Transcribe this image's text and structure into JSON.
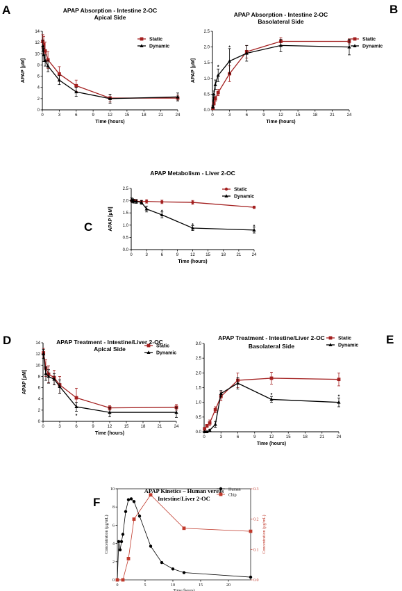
{
  "colors": {
    "static": "#a31f1f",
    "dynamic": "#000000",
    "human": "#000000",
    "chip": "#c0392b"
  },
  "chart_data": [
    {
      "id": "A",
      "panel_label": "A",
      "type": "line",
      "title_lines": [
        "APAP Absorption - Intestine 2-OC",
        "Apical Side"
      ],
      "xlabel": "Time (hours)",
      "ylabel": "APAP [µM]",
      "xlim": [
        0,
        24
      ],
      "ylim": [
        0,
        14
      ],
      "xticks": [
        0,
        3,
        6,
        9,
        12,
        15,
        18,
        21,
        24
      ],
      "yticks": [
        0,
        2,
        4,
        6,
        8,
        10,
        12,
        14
      ],
      "legend": "top-right",
      "series": [
        {
          "name": "Static",
          "color": "#a31f1f",
          "marker": "square",
          "x": [
            0.083,
            0.25,
            0.5,
            1,
            3,
            6,
            12,
            24
          ],
          "y": [
            12.2,
            11.6,
            10.5,
            8.9,
            6.4,
            4.3,
            2.1,
            2.1
          ],
          "err": [
            1.2,
            1.5,
            1.6,
            1.5,
            1.3,
            1.0,
            0.7,
            0.5
          ]
        },
        {
          "name": "Dynamic",
          "color": "#000000",
          "marker": "triangle",
          "x": [
            0.083,
            0.25,
            0.5,
            1,
            3,
            6,
            12,
            24
          ],
          "y": [
            11.4,
            9.8,
            8.8,
            7.8,
            5.3,
            3.2,
            2.0,
            2.3
          ],
          "err": [
            1.0,
            1.2,
            1.0,
            1.0,
            0.8,
            0.8,
            0.8,
            0.7
          ]
        }
      ],
      "annotations": []
    },
    {
      "id": "B",
      "panel_label": "B",
      "type": "line",
      "title_lines": [
        "APAP Absorption - Intestine 2-OC",
        "Basolateral Side"
      ],
      "xlabel": "Time (hours)",
      "ylabel": "APAP [µM]",
      "xlim": [
        0,
        24
      ],
      "ylim": [
        0,
        2.5
      ],
      "xticks": [
        0,
        3,
        6,
        9,
        12,
        15,
        18,
        21,
        24
      ],
      "yticks": [
        0.0,
        0.5,
        1.0,
        1.5,
        2.0,
        2.5
      ],
      "legend": "top-right",
      "series": [
        {
          "name": "Static",
          "color": "#a31f1f",
          "marker": "square",
          "x": [
            0.083,
            0.25,
            0.5,
            1,
            3,
            6,
            12,
            24
          ],
          "y": [
            0.05,
            0.2,
            0.35,
            0.55,
            1.15,
            1.85,
            2.18,
            2.18
          ],
          "err": [
            0.03,
            0.05,
            0.08,
            0.1,
            0.25,
            0.2,
            0.12,
            0.08
          ]
        },
        {
          "name": "Dynamic",
          "color": "#000000",
          "marker": "triangle",
          "x": [
            0.083,
            0.25,
            0.5,
            1,
            3,
            6,
            12,
            24
          ],
          "y": [
            0.1,
            0.5,
            0.8,
            1.1,
            1.55,
            1.8,
            2.05,
            2.0
          ],
          "err": [
            0.05,
            0.1,
            0.15,
            0.2,
            0.4,
            0.25,
            0.2,
            0.25
          ]
        }
      ],
      "annotations": [
        {
          "text": "*",
          "x": 1,
          "y": 1.38
        },
        {
          "text": "*",
          "x": 3,
          "y": 2.0
        }
      ]
    },
    {
      "id": "C",
      "panel_label": "C",
      "type": "line",
      "title_lines": [
        "APAP Metabolism - Liver 2-OC"
      ],
      "xlabel": "Time (hours)",
      "ylabel": "APAP [µM]",
      "xlim": [
        0,
        24
      ],
      "ylim": [
        0,
        2.5
      ],
      "xticks": [
        0,
        3,
        6,
        9,
        12,
        15,
        18,
        21,
        24
      ],
      "yticks": [
        0.0,
        0.5,
        1.0,
        1.5,
        2.0,
        2.5
      ],
      "legend": "top-right",
      "series": [
        {
          "name": "Static",
          "color": "#a31f1f",
          "marker": "circle",
          "x": [
            0.083,
            0.25,
            0.5,
            1,
            2,
            3,
            6,
            12,
            24
          ],
          "y": [
            2.0,
            2.0,
            2.0,
            1.98,
            1.96,
            1.97,
            1.95,
            1.93,
            1.73
          ],
          "err": [
            0.05,
            0.05,
            0.05,
            0.05,
            0.05,
            0.07,
            0.07,
            0.08,
            0.05
          ]
        },
        {
          "name": "Dynamic",
          "color": "#000000",
          "marker": "triangle",
          "x": [
            0.083,
            0.25,
            0.5,
            1,
            2,
            3,
            6,
            12,
            24
          ],
          "y": [
            2.03,
            2.0,
            1.98,
            1.97,
            1.93,
            1.66,
            1.42,
            0.88,
            0.8
          ],
          "err": [
            0.08,
            0.08,
            0.08,
            0.08,
            0.08,
            0.12,
            0.12,
            0.1,
            0.12
          ]
        }
      ],
      "annotations": [
        {
          "text": "*",
          "x": 6,
          "y": 1.58
        },
        {
          "text": "*",
          "x": 12,
          "y": 1.02
        },
        {
          "text": "*",
          "x": 24,
          "y": 0.97
        }
      ]
    },
    {
      "id": "D",
      "panel_label": "D",
      "type": "line",
      "title_lines": [
        "APAP Treatment - Intestine/Liver 2-OC",
        "Apical Side"
      ],
      "xlabel": "Time (hours)",
      "ylabel": "APAP [µM]",
      "xlim": [
        0,
        24
      ],
      "ylim": [
        0,
        14
      ],
      "xticks": [
        0,
        3,
        6,
        9,
        12,
        15,
        18,
        21,
        24
      ],
      "yticks": [
        0,
        2,
        4,
        6,
        8,
        10,
        12,
        14
      ],
      "legend": "top-right",
      "series": [
        {
          "name": "Static",
          "color": "#a31f1f",
          "marker": "square",
          "x": [
            0.083,
            0.5,
            1,
            2,
            3,
            6,
            12,
            24
          ],
          "y": [
            12.2,
            9.5,
            8.4,
            7.8,
            6.5,
            4.2,
            2.4,
            2.5
          ],
          "err": [
            0.8,
            1.5,
            1.5,
            1.3,
            1.5,
            1.7,
            0.4,
            0.5
          ]
        },
        {
          "name": "Dynamic",
          "color": "#000000",
          "marker": "triangle",
          "x": [
            0.083,
            0.5,
            1,
            2,
            3,
            6,
            12,
            24
          ],
          "y": [
            12.0,
            8.5,
            8.0,
            7.5,
            6.2,
            2.6,
            1.6,
            1.6
          ],
          "err": [
            0.8,
            1.2,
            1.2,
            1.0,
            1.2,
            0.8,
            0.8,
            0.9
          ]
        }
      ],
      "annotations": [
        {
          "text": "*",
          "x": 6,
          "y": 1.1
        }
      ]
    },
    {
      "id": "E",
      "panel_label": "E",
      "type": "line",
      "title_lines": [
        "APAP Treatment - Intestine/Liver 2-OC",
        "Basolateral Side"
      ],
      "xlabel": "Time (hours)",
      "ylabel": "",
      "xlim": [
        0,
        24
      ],
      "ylim": [
        0,
        3.0
      ],
      "xticks": [
        0,
        3,
        6,
        9,
        12,
        15,
        18,
        21,
        24
      ],
      "yticks": [
        0.0,
        0.5,
        1.0,
        1.5,
        2.0,
        2.5,
        3.0
      ],
      "legend": "top-right",
      "series": [
        {
          "name": "Static",
          "color": "#a31f1f",
          "marker": "square",
          "x": [
            0.083,
            0.5,
            1,
            2,
            3,
            6,
            12,
            24
          ],
          "y": [
            0.1,
            0.2,
            0.3,
            0.75,
            1.2,
            1.75,
            1.82,
            1.78
          ],
          "err": [
            0.05,
            0.05,
            0.1,
            0.1,
            0.15,
            0.25,
            0.2,
            0.22
          ]
        },
        {
          "name": "Dynamic",
          "color": "#000000",
          "marker": "triangle",
          "x": [
            0.083,
            0.5,
            1,
            2,
            3,
            6,
            12,
            24
          ],
          "y": [
            0.0,
            0.0,
            0.05,
            0.25,
            1.3,
            1.65,
            1.1,
            1.0
          ],
          "err": [
            0.02,
            0.02,
            0.03,
            0.1,
            0.1,
            0.2,
            0.1,
            0.15
          ]
        }
      ],
      "annotations": [
        {
          "text": "*",
          "x": 12,
          "y": 1.28
        },
        {
          "text": "*",
          "x": 24,
          "y": 1.22
        }
      ]
    },
    {
      "id": "F",
      "panel_label": "F",
      "type": "line",
      "title_lines": [
        "APAP Kinetics – Human versus",
        "Intestine/Liver 2-OC"
      ],
      "xlabel": "Time (hours)",
      "ylabel": "Concentration (µg/mL)",
      "y2label": "Concentration (µg/mL)",
      "xlim": [
        0,
        24
      ],
      "ylim": [
        0,
        10
      ],
      "y2lim": [
        0,
        0.3
      ],
      "xticks": [
        0,
        5,
        10,
        15,
        20
      ],
      "yticks": [
        0,
        2,
        4,
        6,
        8,
        10
      ],
      "y2ticks": [
        0.0,
        0.1,
        0.2,
        0.3
      ],
      "legend": "top-right",
      "series": [
        {
          "name": "Human",
          "color": "#000000",
          "marker": "circle",
          "axis": "left",
          "x": [
            0,
            0.25,
            0.5,
            0.75,
            1,
            1.5,
            2,
            2.5,
            3,
            4,
            6,
            8,
            10,
            12,
            24
          ],
          "y": [
            0.0,
            4.2,
            3.3,
            4.2,
            5.0,
            7.5,
            8.8,
            8.9,
            8.6,
            7.0,
            3.7,
            1.9,
            1.2,
            0.8,
            0.3
          ]
        },
        {
          "name": "Chip",
          "color": "#c0392b",
          "marker": "square",
          "axis": "right",
          "x": [
            0,
            1,
            2,
            3,
            6,
            12,
            24
          ],
          "y": [
            0.0,
            0.0,
            0.07,
            0.2,
            0.28,
            0.17,
            0.16
          ]
        }
      ],
      "annotations": []
    }
  ]
}
